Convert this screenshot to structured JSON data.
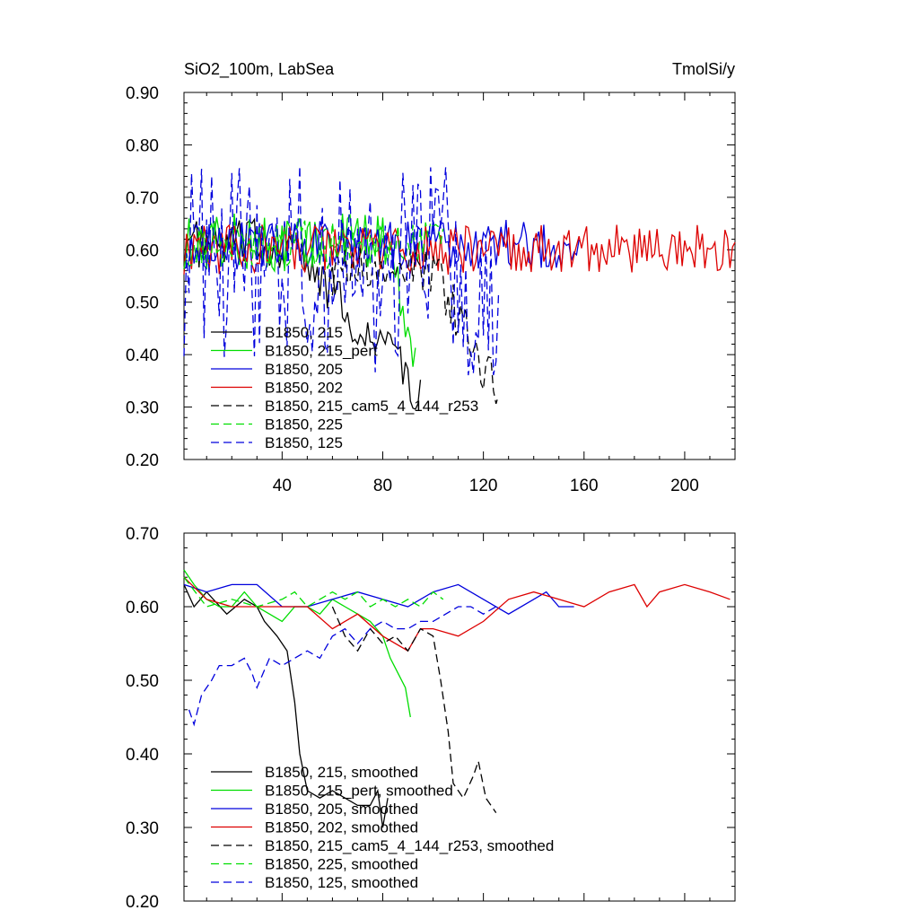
{
  "chart_data": [
    {
      "type": "line",
      "title": "SiO2_100m, LabSea",
      "units": "TmolSi/y",
      "xlim": [
        1,
        220
      ],
      "ylim": [
        0.2,
        0.9
      ],
      "xticks": [
        40,
        80,
        120,
        160,
        200
      ],
      "yticks": [
        0.2,
        0.3,
        0.4,
        0.5,
        0.6,
        0.7,
        0.8,
        0.9
      ],
      "ytick_labels": [
        "0.20",
        "0.30",
        "0.40",
        "0.50",
        "0.60",
        "0.70",
        "0.80",
        "0.90"
      ],
      "xtick_labels": [
        "40",
        "80",
        "120",
        "160",
        "200"
      ],
      "legend_location": "bottom-left",
      "series": [
        {
          "name": "B1850, 215",
          "color": "#000000",
          "dash": "solid",
          "len": 95,
          "base": 0.61,
          "noise": 0.03,
          "drop": {
            "start": 44,
            "end": 95,
            "to": 0.32
          }
        },
        {
          "name": "B1850, 215_pert",
          "color": "#00dd00",
          "dash": "solid",
          "len": 93,
          "base": 0.615,
          "noise": 0.035,
          "drop": {
            "start": 82,
            "end": 93,
            "to": 0.4
          }
        },
        {
          "name": "B1850, 205",
          "color": "#0000dd",
          "dash": "solid",
          "len": 158,
          "base": 0.61,
          "noise": 0.03
        },
        {
          "name": "B1850, 202",
          "color": "#dd0000",
          "dash": "solid",
          "len": 220,
          "base": 0.6,
          "noise": 0.03
        },
        {
          "name": "B1850, 215_cam5_4_144_r253",
          "color": "#000000",
          "dash": "dashed",
          "len": 126,
          "base": 0.56,
          "noise": 0.03,
          "start": 60,
          "drop": {
            "start": 100,
            "end": 126,
            "to": 0.33
          }
        },
        {
          "name": "B1850, 225",
          "color": "#00dd00",
          "dash": "dashed",
          "len": 104,
          "base": 0.61,
          "noise": 0.03
        },
        {
          "name": "B1850, 125",
          "color": "#0000dd",
          "dash": "dashed",
          "len": 126,
          "base": 0.56,
          "noise": 0.1
        }
      ]
    },
    {
      "type": "line",
      "title": "",
      "xlim": [
        1,
        220
      ],
      "ylim": [
        0.2,
        0.7
      ],
      "yticks": [
        0.2,
        0.3,
        0.4,
        0.5,
        0.6,
        0.7
      ],
      "ytick_labels": [
        "0.20",
        "0.30",
        "0.40",
        "0.50",
        "0.60",
        "0.70"
      ],
      "legend_location": "bottom-left",
      "series": [
        {
          "name": "B1850, 215, smoothed",
          "color": "#000000",
          "dash": "solid",
          "points": [
            [
              1,
              0.63
            ],
            [
              5,
              0.6
            ],
            [
              10,
              0.62
            ],
            [
              18,
              0.59
            ],
            [
              25,
              0.61
            ],
            [
              30,
              0.6
            ],
            [
              33,
              0.58
            ],
            [
              38,
              0.56
            ],
            [
              42,
              0.54
            ],
            [
              45,
              0.47
            ],
            [
              47,
              0.4
            ],
            [
              50,
              0.35
            ],
            [
              55,
              0.34
            ],
            [
              60,
              0.35
            ],
            [
              65,
              0.34
            ],
            [
              70,
              0.33
            ],
            [
              75,
              0.33
            ],
            [
              78,
              0.35
            ],
            [
              80,
              0.3
            ],
            [
              82,
              0.34
            ]
          ]
        },
        {
          "name": "B1850, 215_pert, smoothed",
          "color": "#00dd00",
          "dash": "solid",
          "points": [
            [
              1,
              0.65
            ],
            [
              5,
              0.63
            ],
            [
              10,
              0.61
            ],
            [
              15,
              0.6
            ],
            [
              20,
              0.6
            ],
            [
              25,
              0.62
            ],
            [
              30,
              0.6
            ],
            [
              35,
              0.59
            ],
            [
              40,
              0.58
            ],
            [
              45,
              0.6
            ],
            [
              50,
              0.6
            ],
            [
              55,
              0.59
            ],
            [
              60,
              0.61
            ],
            [
              65,
              0.6
            ],
            [
              70,
              0.59
            ],
            [
              75,
              0.58
            ],
            [
              80,
              0.56
            ],
            [
              83,
              0.53
            ],
            [
              86,
              0.51
            ],
            [
              89,
              0.49
            ],
            [
              91,
              0.45
            ]
          ]
        },
        {
          "name": "B1850, 205, smoothed",
          "color": "#0000dd",
          "dash": "solid",
          "points": [
            [
              1,
              0.63
            ],
            [
              10,
              0.62
            ],
            [
              20,
              0.63
            ],
            [
              30,
              0.63
            ],
            [
              40,
              0.6
            ],
            [
              50,
              0.6
            ],
            [
              60,
              0.61
            ],
            [
              70,
              0.62
            ],
            [
              80,
              0.61
            ],
            [
              90,
              0.6
            ],
            [
              100,
              0.62
            ],
            [
              110,
              0.63
            ],
            [
              120,
              0.61
            ],
            [
              130,
              0.59
            ],
            [
              140,
              0.61
            ],
            [
              145,
              0.62
            ],
            [
              150,
              0.6
            ],
            [
              156,
              0.6
            ]
          ]
        },
        {
          "name": "B1850, 202, smoothed",
          "color": "#dd0000",
          "dash": "solid",
          "points": [
            [
              1,
              0.64
            ],
            [
              10,
              0.61
            ],
            [
              20,
              0.6
            ],
            [
              30,
              0.6
            ],
            [
              40,
              0.6
            ],
            [
              50,
              0.6
            ],
            [
              60,
              0.57
            ],
            [
              70,
              0.59
            ],
            [
              80,
              0.56
            ],
            [
              90,
              0.54
            ],
            [
              95,
              0.57
            ],
            [
              100,
              0.57
            ],
            [
              110,
              0.56
            ],
            [
              120,
              0.58
            ],
            [
              130,
              0.61
            ],
            [
              140,
              0.62
            ],
            [
              150,
              0.61
            ],
            [
              160,
              0.6
            ],
            [
              170,
              0.62
            ],
            [
              180,
              0.63
            ],
            [
              185,
              0.6
            ],
            [
              190,
              0.62
            ],
            [
              200,
              0.63
            ],
            [
              210,
              0.62
            ],
            [
              218,
              0.61
            ]
          ]
        },
        {
          "name": "B1850, 215_cam5_4_144_r253, smoothed",
          "color": "#000000",
          "dash": "dashed",
          "points": [
            [
              60,
              0.6
            ],
            [
              65,
              0.56
            ],
            [
              70,
              0.54
            ],
            [
              75,
              0.57
            ],
            [
              80,
              0.55
            ],
            [
              85,
              0.56
            ],
            [
              90,
              0.54
            ],
            [
              95,
              0.57
            ],
            [
              100,
              0.56
            ],
            [
              103,
              0.5
            ],
            [
              106,
              0.43
            ],
            [
              108,
              0.36
            ],
            [
              112,
              0.34
            ],
            [
              116,
              0.37
            ],
            [
              118,
              0.39
            ],
            [
              121,
              0.34
            ],
            [
              125,
              0.32
            ]
          ]
        },
        {
          "name": "B1850, 225, smoothed",
          "color": "#00dd00",
          "dash": "dashed",
          "points": [
            [
              1,
              0.64
            ],
            [
              10,
              0.6
            ],
            [
              20,
              0.61
            ],
            [
              30,
              0.6
            ],
            [
              40,
              0.61
            ],
            [
              45,
              0.62
            ],
            [
              50,
              0.6
            ],
            [
              55,
              0.61
            ],
            [
              60,
              0.62
            ],
            [
              65,
              0.61
            ],
            [
              70,
              0.62
            ],
            [
              75,
              0.6
            ],
            [
              80,
              0.61
            ],
            [
              85,
              0.6
            ],
            [
              90,
              0.61
            ],
            [
              95,
              0.6
            ],
            [
              100,
              0.62
            ],
            [
              104,
              0.61
            ]
          ]
        },
        {
          "name": "B1850, 125, smoothed",
          "color": "#0000dd",
          "dash": "dashed",
          "points": [
            [
              3,
              0.46
            ],
            [
              5,
              0.44
            ],
            [
              8,
              0.48
            ],
            [
              12,
              0.5
            ],
            [
              15,
              0.52
            ],
            [
              20,
              0.52
            ],
            [
              25,
              0.53
            ],
            [
              28,
              0.51
            ],
            [
              30,
              0.49
            ],
            [
              35,
              0.53
            ],
            [
              40,
              0.52
            ],
            [
              45,
              0.53
            ],
            [
              50,
              0.54
            ],
            [
              55,
              0.53
            ],
            [
              60,
              0.56
            ],
            [
              65,
              0.57
            ],
            [
              70,
              0.55
            ],
            [
              75,
              0.57
            ],
            [
              80,
              0.58
            ],
            [
              85,
              0.57
            ],
            [
              90,
              0.57
            ],
            [
              95,
              0.58
            ],
            [
              100,
              0.58
            ],
            [
              105,
              0.59
            ],
            [
              110,
              0.6
            ],
            [
              115,
              0.6
            ],
            [
              120,
              0.59
            ],
            [
              125,
              0.6
            ]
          ]
        }
      ]
    }
  ]
}
